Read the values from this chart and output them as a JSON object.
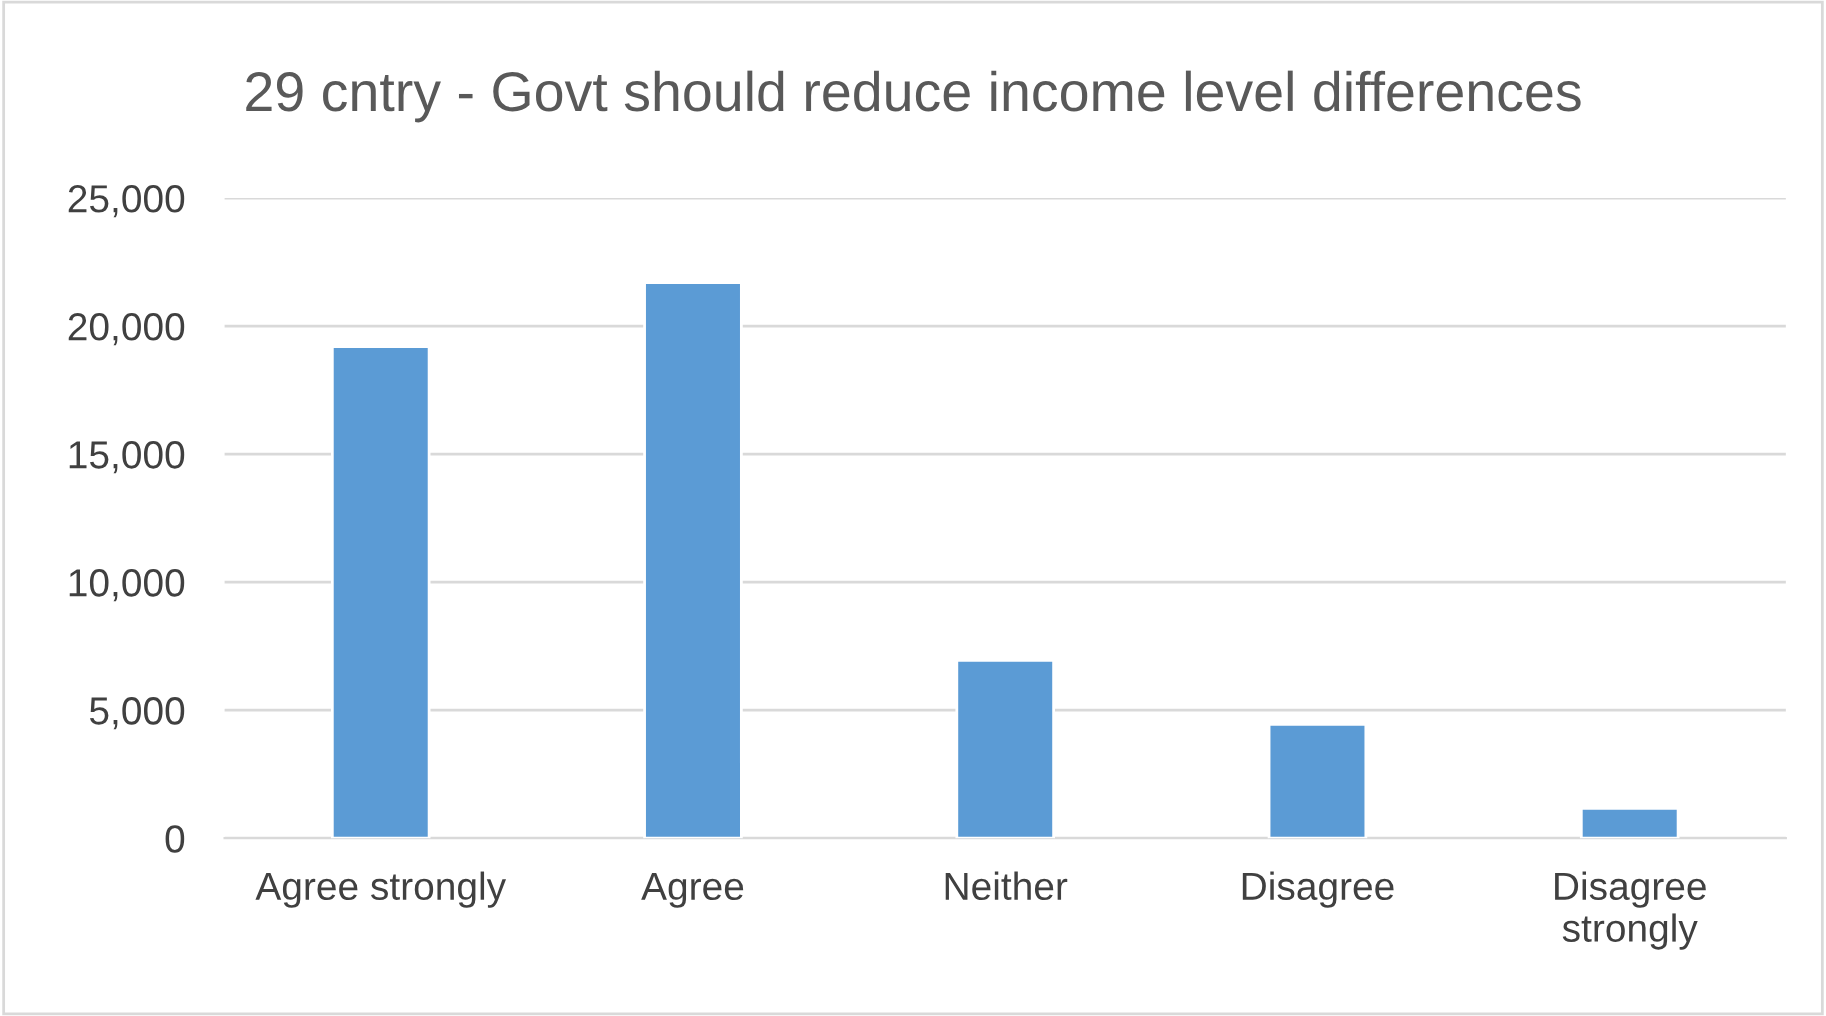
{
  "chart_data": {
    "type": "bar",
    "title": "29 cntry - Govt should reduce income level differences",
    "categories": [
      "Agree strongly",
      "Agree",
      "Neither",
      "Disagree",
      "Disagree strongly"
    ],
    "values": [
      19200,
      21700,
      6950,
      4450,
      1170
    ],
    "color": "#5b9bd5",
    "ylim": [
      0,
      25000
    ],
    "yticks": [
      0,
      {
        "value": 5000,
        "label": "5,000"
      },
      {
        "value": 10000,
        "label": "10,000"
      },
      {
        "value": 15000,
        "label": "15,000"
      },
      {
        "value": 20000,
        "label": "20,000"
      },
      {
        "value": 25000,
        "label": "25,000"
      }
    ],
    "grid": "y"
  }
}
